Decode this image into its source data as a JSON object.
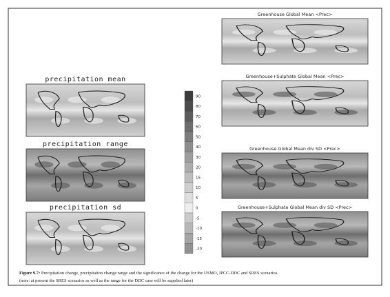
{
  "left_panels": [
    {
      "title": "precipitation mean"
    },
    {
      "title": "precipitation range"
    },
    {
      "title": "precipitation sd"
    }
  ],
  "colorbar": {
    "labels": [
      "90",
      "80",
      "70",
      "60",
      "50",
      "40",
      "30",
      "20",
      "15",
      "10",
      "5",
      "0",
      "-5",
      "-10",
      "-15",
      "-20"
    ]
  },
  "right_panels": [
    {
      "title": "Greenhouse Global Mean <Prec>"
    },
    {
      "title": "Greenhouse+Sulphate Global Mean <Prec>"
    },
    {
      "title": "Greenhouse Global Mean div SD <Prec>"
    },
    {
      "title": "Greenhouse+Sulphate Global Mean div SD <Prec>"
    }
  ],
  "caption": {
    "label": "Figure 9.7:",
    "text": "Precipitation change, precipitation change range and the significance of the change for the USMO, IPCC-DDC and SRES scenarios.",
    "note": "(note: at present the SRES scenarios as well as the range for the DDC case will be supplied later)"
  }
}
